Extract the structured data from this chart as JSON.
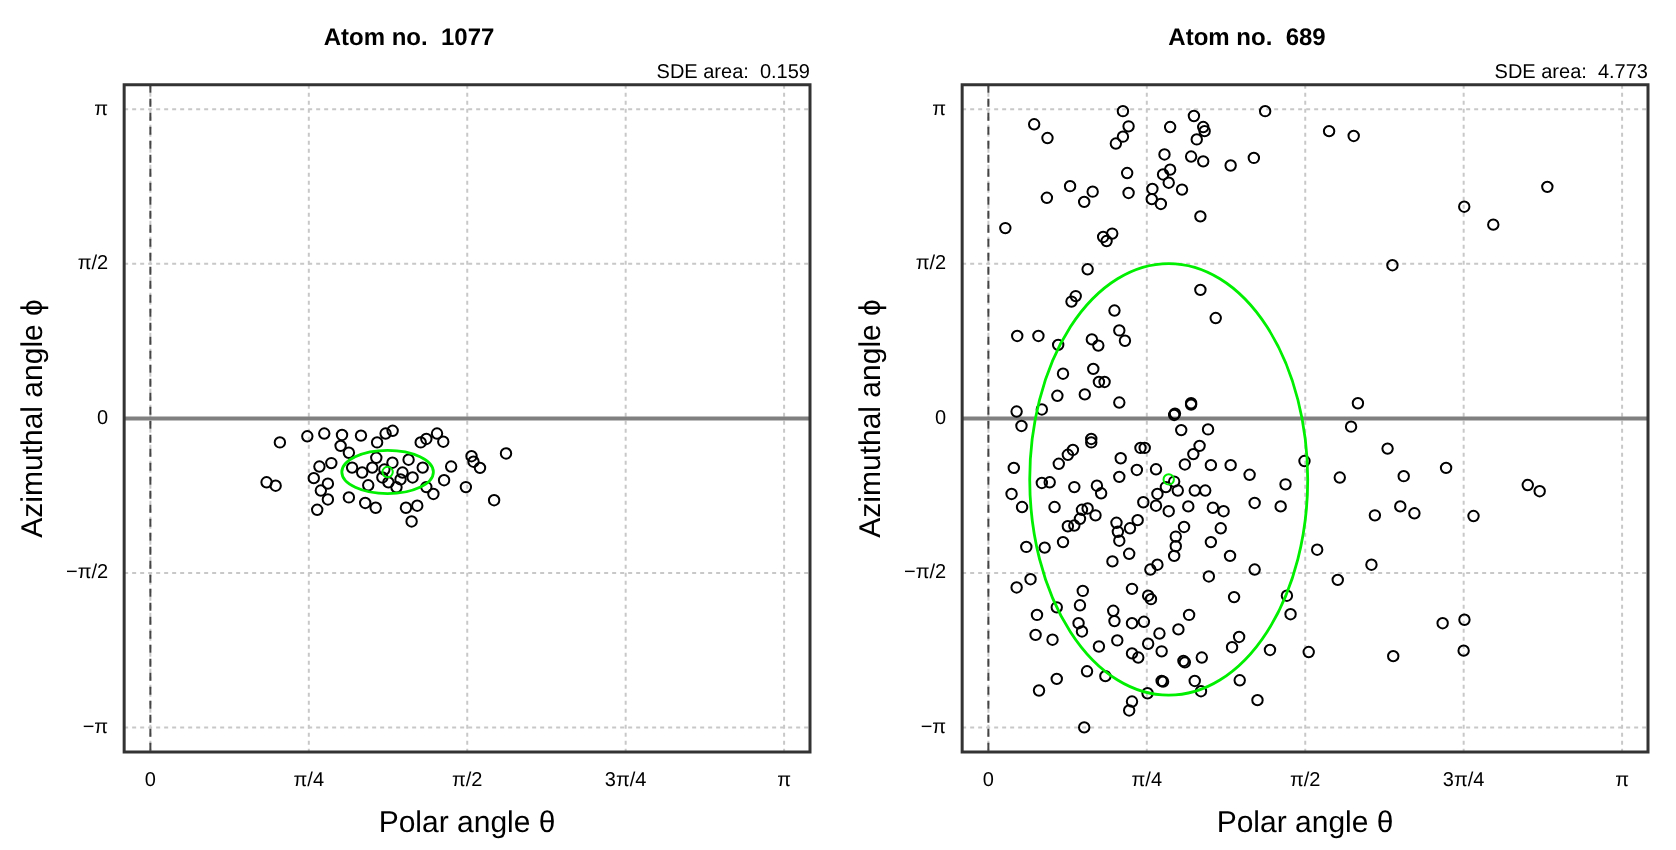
{
  "chart_data": [
    {
      "type": "scatter",
      "title": "Atom no.  1077",
      "xlabel": "Polar angle θ",
      "ylabel": "Azimuthal angle ϕ",
      "annotations": [
        "SDE area:  0.159"
      ],
      "xlim": [
        -0.13,
        3.27
      ],
      "ylim": [
        -3.39,
        3.39
      ],
      "xticks": [
        0,
        {
          "value": 0.7854,
          "label": "π/4"
        },
        {
          "value": 1.5708,
          "label": "π/2"
        },
        {
          "value": 2.3562,
          "label": "3π/4"
        },
        {
          "value": 3.1416,
          "label": "π"
        }
      ],
      "yticks": [
        {
          "value": -3.1416,
          "label": "−π"
        },
        {
          "value": -1.5708,
          "label": "−π/2"
        },
        0,
        {
          "value": 1.5708,
          "label": "π/2"
        },
        {
          "value": 3.1416,
          "label": "π"
        }
      ],
      "grid": true,
      "marker": "circle",
      "ref_lines": [
        {
          "axis": "x",
          "value": 0,
          "color": "#444444",
          "line_style": "dashed"
        },
        {
          "axis": "y",
          "value": 0,
          "color": "#808080",
          "line_style": "solid"
        }
      ],
      "series": [
        {
          "color": "#000000",
          "x": [
            0.642,
            0.576,
            0.621,
            0.778,
            0.862,
            0.827,
            0.81,
            0.95,
            0.943,
            1.044,
            1.124,
            1.201,
            1.166,
            1.34,
            1.421,
            1.452,
            1.368,
            1.491,
            1.456,
            1.564,
            1.592,
            1.602,
            1.634,
            1.763,
            1.704,
            1.295,
            1.267,
            1.323,
            1.117,
            1.065,
            0.88,
            0.845,
            0.838,
            0.897,
            0.984,
            1.403,
            0.984,
            1.368,
            0.88,
            1.1,
            1.15,
            1.2,
            1.25,
            1.05,
            1.3,
            1.18,
            1.12,
            1.22,
            1.0,
            1.35,
            1.28,
            1.08,
            1.16,
            1.24
          ],
          "values": [
            -0.244,
            -0.649,
            -0.684,
            -0.182,
            -0.154,
            -0.929,
            -0.607,
            -0.168,
            -0.279,
            -0.175,
            -0.244,
            -0.126,
            -0.154,
            -0.244,
            -0.154,
            -0.237,
            -0.209,
            -0.489,
            -0.628,
            -0.698,
            -0.384,
            -0.44,
            -0.503,
            -0.356,
            -0.831,
            -1.047,
            -0.908,
            -0.887,
            -0.908,
            -0.859,
            -0.824,
            -0.733,
            -0.489,
            -0.454,
            -0.803,
            -0.768,
            -0.349,
            -0.698,
            -0.663,
            -0.5,
            -0.6,
            -0.45,
            -0.55,
            -0.55,
            -0.6,
            -0.65,
            -0.4,
            -0.7,
            -0.5,
            -0.5,
            -0.42,
            -0.68,
            -0.52,
            -0.62
          ]
        },
        {
          "color": "#00ee00",
          "x": [
            1.176
          ],
          "values": [
            -0.545
          ]
        }
      ]
    },
    {
      "type": "scatter",
      "title": "Atom no.  689",
      "xlabel": "Polar angle θ",
      "ylabel": "Azimuthal angle ϕ",
      "annotations": [
        "SDE area:  4.773"
      ],
      "xlim": [
        -0.13,
        3.27
      ],
      "ylim": [
        -3.39,
        3.39
      ],
      "xticks": [
        0,
        {
          "value": 0.7854,
          "label": "π/4"
        },
        {
          "value": 1.5708,
          "label": "π/2"
        },
        {
          "value": 2.3562,
          "label": "3π/4"
        },
        {
          "value": 3.1416,
          "label": "π"
        }
      ],
      "yticks": [
        {
          "value": -3.1416,
          "label": "−π"
        },
        {
          "value": -1.5708,
          "label": "−π/2"
        },
        0,
        {
          "value": 1.5708,
          "label": "π/2"
        },
        {
          "value": 3.1416,
          "label": "π"
        }
      ],
      "grid": true,
      "marker": "circle",
      "ref_lines": [
        {
          "axis": "x",
          "value": 0,
          "color": "#444444",
          "line_style": "dashed"
        },
        {
          "axis": "y",
          "value": 0,
          "color": "#808080",
          "line_style": "solid"
        }
      ],
      "series": [
        {
          "color": "#000000",
          "x": [
            0.227,
            0.293,
            0.667,
            0.695,
            0.667,
            0.632,
            0.901,
            1.019,
            1.065,
            1.072,
            1.033,
            0.873,
            1.005,
            1.065,
            0.901,
            0.866,
            0.894,
            1.201,
            1.316,
            1.372,
            1.689,
            1.811,
            2.359,
            2.503,
            2.771,
            2.003,
            0.688,
            0.695,
            0.813,
            0.81,
            0.855,
            0.96,
            1.051,
            0.405,
            0.517,
            0.475,
            0.29,
            0.084,
            0.569,
            0.614,
            0.586,
            0.492,
            0.412,
            0.433,
            0.625,
            0.649,
            0.677,
            0.513,
            0.545,
            0.52,
            0.548,
            0.576,
            0.478,
            0.649,
            0.37,
            0.342,
            0.346,
            0.248,
            0.143,
            0.14,
            0.164,
            0.265,
            1.051,
            1.127,
            1.005,
            1.832,
            0.925,
            1.798,
            1.979,
            1.742,
            2.059,
            2.269,
            1.916,
            2.042,
            2.112,
            2.405,
            2.674,
            2.733,
            1.899,
            1.732,
            1.63,
            1.567,
            1.473,
            1.449,
            1.32,
            1.295,
            2.252,
            2.36,
            2.356,
            2.007,
            1.588,
            1.396,
            1.334,
            1.246,
            1.243,
            1.208,
            1.48,
            1.498,
            1.32,
            1.218,
            1.198,
            1.152,
            1.103,
            1.093,
            1.058,
            1.054,
            1.023,
            0.974,
            0.995,
            0.942,
            0.859,
            0.789,
            0.712,
            0.698,
            0.475,
            0.251,
            0.339,
            0.318,
            0.234,
            0.241,
            0.339,
            0.14,
            0.209,
            0.188,
            0.279,
            0.167,
            0.115,
            0.126,
            0.265,
            0.304,
            0.328,
            0.37,
            0.394,
            0.426,
            0.454,
            0.349,
            0.394,
            0.419,
            0.51,
            0.51,
            0.426,
            0.464,
            0.492,
            0.538,
            0.559,
            0.531,
            0.635,
            0.649,
            0.698,
            0.615,
            0.712,
            0.792,
            0.806,
            0.803,
            0.838,
            0.921,
            0.929,
            0.929,
            0.97,
            0.894,
            0.831,
            0.768,
            0.74,
            0.702,
            0.642,
            0.649,
            0.736,
            0.656,
            0.754,
            0.775,
            0.831,
            0.838,
            0.88,
            0.921,
            0.939,
            0.974,
            1.016,
            1.047,
            1.089,
            0.956,
            0.921,
            1.005,
            1.103,
            1.201,
            1.166,
            1.113,
            1.075,
            1.023,
            0.991,
            0.468,
            0.454,
            0.447,
            0.464,
            0.548,
            0.489,
            0.58,
            0.619,
            0.625,
            0.639,
            0.712,
            0.771,
            0.743,
            0.792,
            0.848,
            0.859,
            0.712,
            0.866,
            0.967
          ],
          "values": [
            2.989,
            2.849,
            3.122,
            2.968,
            2.863,
            2.793,
            2.961,
            3.073,
            2.961,
            2.919,
            2.835,
            2.682,
            2.661,
            2.612,
            2.528,
            2.479,
            2.395,
            2.57,
            2.647,
            3.122,
            2.919,
            2.87,
            2.151,
            1.969,
            2.353,
            1.557,
            2.493,
            2.291,
            2.332,
            2.228,
            2.179,
            2.325,
            2.053,
            2.36,
            2.304,
            2.2,
            2.242,
            1.934,
            1.844,
            1.878,
            1.802,
            1.515,
            1.187,
            1.243,
            1.096,
            0.894,
            0.789,
            0.803,
            0.74,
            0.503,
            0.37,
            0.37,
            0.244,
            0.161,
            0.454,
            0.23,
            0.747,
            0.838,
            0.838,
            0.07,
            -0.077,
            0.091,
            1.306,
            1.02,
            0.154,
            0.154,
            0.049,
            -0.084,
            -0.307,
            -0.601,
            -0.587,
            -0.503,
            -0.985,
            -0.894,
            -0.964,
            -0.992,
            -0.677,
            -0.74,
            -1.487,
            -1.641,
            -1.334,
            -0.433,
            -0.67,
            -0.894,
            -0.859,
            -0.573,
            -2.081,
            -2.046,
            -2.36,
            -2.416,
            -2.374,
            -2.353,
            -2.863,
            -2.661,
            -2.221,
            -2.325,
            -1.802,
            -1.99,
            -1.536,
            -1.816,
            -1.397,
            -1.117,
            -1.257,
            -1.606,
            -2.43,
            -2.772,
            -2.668,
            -2.479,
            -1.997,
            -2.144,
            -2.668,
            -2.793,
            -2.877,
            -2.968,
            -3.14,
            -2.765,
            -2.647,
            -2.249,
            -2.2,
            -1.997,
            -1.92,
            -1.718,
            -1.634,
            -1.306,
            -1.313,
            -0.901,
            -0.768,
            -0.503,
            -0.656,
            -0.649,
            -0.901,
            -1.257,
            -1.096,
            -1.089,
            -1.02,
            -0.461,
            -0.37,
            -0.321,
            -0.209,
            -0.244,
            -0.698,
            -0.929,
            -0.915,
            -0.684,
            -0.761,
            -0.985,
            -1.061,
            -1.243,
            -1.376,
            -1.453,
            -1.732,
            -1.802,
            -1.837,
            -1.536,
            -1.487,
            -1.397,
            -1.299,
            -1.201,
            -1.103,
            -0.943,
            -0.887,
            -0.852,
            -1.034,
            -1.117,
            -1.152,
            -0.594,
            -0.524,
            -0.405,
            -0.3,
            -0.3,
            -0.517,
            -0.768,
            -0.698,
            -0.642,
            -0.733,
            -0.468,
            -0.363,
            -0.279,
            -0.112,
            -0.119,
            0.035,
            0.14,
            -0.475,
            -0.475,
            -0.943,
            -0.908,
            -0.733,
            -0.733,
            -0.894,
            -1.753,
            -1.899,
            -2.081,
            -2.165,
            -2.318,
            -2.57,
            -2.619,
            -1.955,
            -2.06,
            -2.256,
            -2.081,
            -2.067,
            -2.43,
            -2.29,
            -2.186,
            -2.367,
            -2.388,
            -2.675,
            -2.465
          ]
        },
        {
          "color": "#00ee00",
          "x": [
            0.894
          ],
          "values": [
            -0.62
          ]
        }
      ]
    }
  ]
}
